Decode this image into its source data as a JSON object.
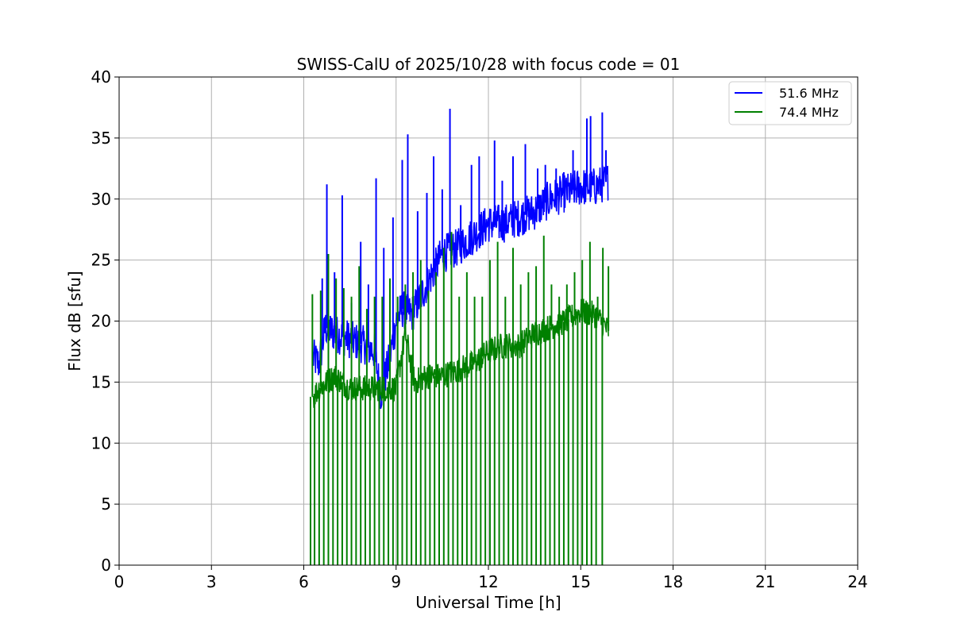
{
  "chart_data": {
    "type": "line",
    "title": "SWISS-CalU of 2025/10/28 with focus code = 01",
    "xlabel": "Universal Time [h]",
    "ylabel": "Flux dB [sfu]",
    "xlim": [
      0,
      24
    ],
    "ylim": [
      0,
      40
    ],
    "x_ticks": [
      "0",
      "3",
      "6",
      "9",
      "12",
      "15",
      "18",
      "21",
      "24"
    ],
    "y_ticks": [
      "0",
      "5",
      "10",
      "15",
      "20",
      "25",
      "30",
      "35",
      "40"
    ],
    "grid": true,
    "legend_position": "top-right",
    "series": [
      {
        "name": "51.6 MHz",
        "color": "#0000ff",
        "x": [
          6.3,
          6.5,
          6.7,
          7.0,
          7.5,
          8.0,
          8.3,
          8.5,
          8.8,
          9.0,
          9.2,
          9.5,
          10.0,
          10.5,
          11.0,
          11.5,
          12.0,
          12.5,
          13.0,
          13.5,
          14.0,
          14.5,
          15.0,
          15.5,
          15.9
        ],
        "y": [
          17,
          16.5,
          19.5,
          19,
          18.5,
          18,
          17.5,
          14,
          17,
          20,
          21,
          20.5,
          23,
          25.5,
          26,
          27,
          28,
          28,
          28.5,
          29,
          30,
          30.5,
          31,
          31,
          31.5
        ],
        "spikes": [
          {
            "x": 6.6,
            "y": 23.5
          },
          {
            "x": 6.75,
            "y": 31.2
          },
          {
            "x": 7.0,
            "y": 24
          },
          {
            "x": 7.25,
            "y": 30.3
          },
          {
            "x": 7.55,
            "y": 21.5
          },
          {
            "x": 7.85,
            "y": 26.5
          },
          {
            "x": 8.1,
            "y": 23
          },
          {
            "x": 8.35,
            "y": 31.7
          },
          {
            "x": 8.6,
            "y": 26
          },
          {
            "x": 8.9,
            "y": 28.5
          },
          {
            "x": 9.2,
            "y": 33.2
          },
          {
            "x": 9.38,
            "y": 35.3
          },
          {
            "x": 9.7,
            "y": 29
          },
          {
            "x": 10.0,
            "y": 30.5
          },
          {
            "x": 10.22,
            "y": 33.5
          },
          {
            "x": 10.5,
            "y": 30.8
          },
          {
            "x": 10.75,
            "y": 37.4
          },
          {
            "x": 11.1,
            "y": 29.5
          },
          {
            "x": 11.45,
            "y": 32.8
          },
          {
            "x": 11.7,
            "y": 33.5
          },
          {
            "x": 12.2,
            "y": 34.8
          },
          {
            "x": 12.45,
            "y": 31.5
          },
          {
            "x": 12.8,
            "y": 33.5
          },
          {
            "x": 13.2,
            "y": 34.5
          },
          {
            "x": 13.6,
            "y": 32.5
          },
          {
            "x": 13.85,
            "y": 32.8
          },
          {
            "x": 14.2,
            "y": 32.5
          },
          {
            "x": 14.45,
            "y": 32.2
          },
          {
            "x": 14.75,
            "y": 34
          },
          {
            "x": 15.2,
            "y": 36.6
          },
          {
            "x": 15.32,
            "y": 36.8
          },
          {
            "x": 15.7,
            "y": 37.1
          },
          {
            "x": 15.82,
            "y": 34
          }
        ]
      },
      {
        "name": "74.4 MHz",
        "color": "#008000",
        "x": [
          6.3,
          6.5,
          7.0,
          7.5,
          8.0,
          8.5,
          9.0,
          9.3,
          9.6,
          10.0,
          10.5,
          11.0,
          11.5,
          12.0,
          12.5,
          13.0,
          13.5,
          14.0,
          14.5,
          15.0,
          15.5,
          15.9
        ],
        "y": [
          13.8,
          14.5,
          15.5,
          14.5,
          14.5,
          14.5,
          14.5,
          19,
          15,
          15.5,
          15.5,
          16,
          16.5,
          17.5,
          18,
          18,
          19,
          19.5,
          20,
          20.8,
          20.5,
          19.2
        ],
        "spikes": [
          {
            "x": 6.28,
            "y": 22.2
          },
          {
            "x": 6.55,
            "y": 22.5
          },
          {
            "x": 6.8,
            "y": 25.5
          },
          {
            "x": 7.05,
            "y": 23.5
          },
          {
            "x": 7.3,
            "y": 22.7
          },
          {
            "x": 7.55,
            "y": 22
          },
          {
            "x": 7.8,
            "y": 24.5
          },
          {
            "x": 8.05,
            "y": 21
          },
          {
            "x": 8.3,
            "y": 22
          },
          {
            "x": 8.55,
            "y": 22
          },
          {
            "x": 8.8,
            "y": 23.5
          },
          {
            "x": 9.05,
            "y": 22
          },
          {
            "x": 9.3,
            "y": 23
          },
          {
            "x": 9.55,
            "y": 24
          },
          {
            "x": 9.8,
            "y": 25
          },
          {
            "x": 10.05,
            "y": 22.5
          },
          {
            "x": 10.3,
            "y": 24
          },
          {
            "x": 10.55,
            "y": 26
          },
          {
            "x": 10.8,
            "y": 27.3
          },
          {
            "x": 11.05,
            "y": 22
          },
          {
            "x": 11.3,
            "y": 24
          },
          {
            "x": 11.55,
            "y": 22
          },
          {
            "x": 11.8,
            "y": 22
          },
          {
            "x": 12.05,
            "y": 25
          },
          {
            "x": 12.3,
            "y": 26.5
          },
          {
            "x": 12.55,
            "y": 22
          },
          {
            "x": 12.8,
            "y": 26
          },
          {
            "x": 13.05,
            "y": 23
          },
          {
            "x": 13.3,
            "y": 24
          },
          {
            "x": 13.55,
            "y": 24.5
          },
          {
            "x": 13.8,
            "y": 27
          },
          {
            "x": 14.05,
            "y": 23
          },
          {
            "x": 14.3,
            "y": 22
          },
          {
            "x": 14.55,
            "y": 23
          },
          {
            "x": 14.8,
            "y": 24
          },
          {
            "x": 15.05,
            "y": 25
          },
          {
            "x": 15.3,
            "y": 26.5
          },
          {
            "x": 15.55,
            "y": 22
          },
          {
            "x": 15.72,
            "y": 26
          },
          {
            "x": 15.9,
            "y": 24.5
          }
        ],
        "drop_x": [
          6.22,
          6.35,
          6.5,
          6.65,
          6.8,
          6.95,
          7.1,
          7.25,
          7.4,
          7.55,
          7.7,
          7.85,
          8.0,
          8.15,
          8.3,
          8.45,
          8.6,
          8.75,
          8.9,
          9.05,
          9.2,
          9.35,
          9.5,
          9.65,
          9.8,
          9.95,
          10.1,
          10.25,
          10.4,
          10.55,
          10.7,
          10.85,
          11.0,
          11.15,
          11.3,
          11.45,
          11.6,
          11.75,
          11.9,
          12.05,
          12.2,
          12.35,
          12.5,
          12.65,
          12.8,
          12.95,
          13.1,
          13.25,
          13.4,
          13.55,
          13.7,
          13.85,
          14.0,
          14.15,
          14.3,
          14.45,
          14.6,
          14.75,
          14.9,
          15.05,
          15.2,
          15.35,
          15.5,
          15.7
        ]
      }
    ]
  }
}
